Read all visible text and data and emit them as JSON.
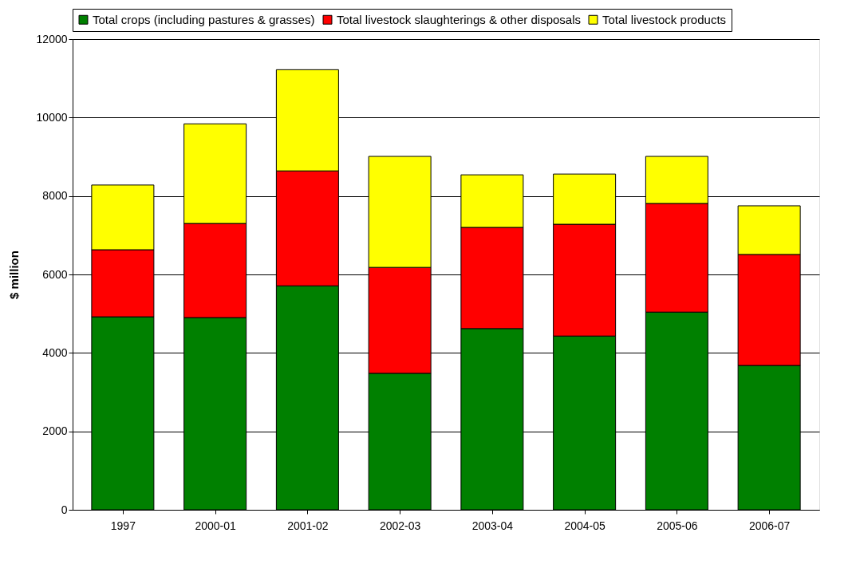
{
  "chart_data": {
    "type": "bar",
    "stacked": true,
    "ylabel": "$ million",
    "categories": [
      "1997",
      "2000-01",
      "2001-02",
      "2002-03",
      "2003-04",
      "2004-05",
      "2005-06",
      "2006-07"
    ],
    "series": [
      {
        "name": "Total crops (including pastures & grasses)",
        "color": "#008000",
        "values": [
          4920,
          4900,
          5710,
          3480,
          4620,
          4430,
          5040,
          3680
        ]
      },
      {
        "name": "Total livestock slaughterings & other disposals",
        "color": "#ff0000",
        "values": [
          1710,
          2400,
          2930,
          2700,
          2580,
          2850,
          2770,
          2830
        ]
      },
      {
        "name": "Total livestock products",
        "color": "#ffff00",
        "values": [
          1650,
          2540,
          2580,
          2830,
          1340,
          1280,
          1200,
          1240
        ]
      }
    ],
    "ylim": [
      0,
      12000
    ],
    "yticks": [
      0,
      2000,
      4000,
      6000,
      8000,
      10000,
      12000
    ],
    "grid": "y",
    "legend": "top"
  }
}
